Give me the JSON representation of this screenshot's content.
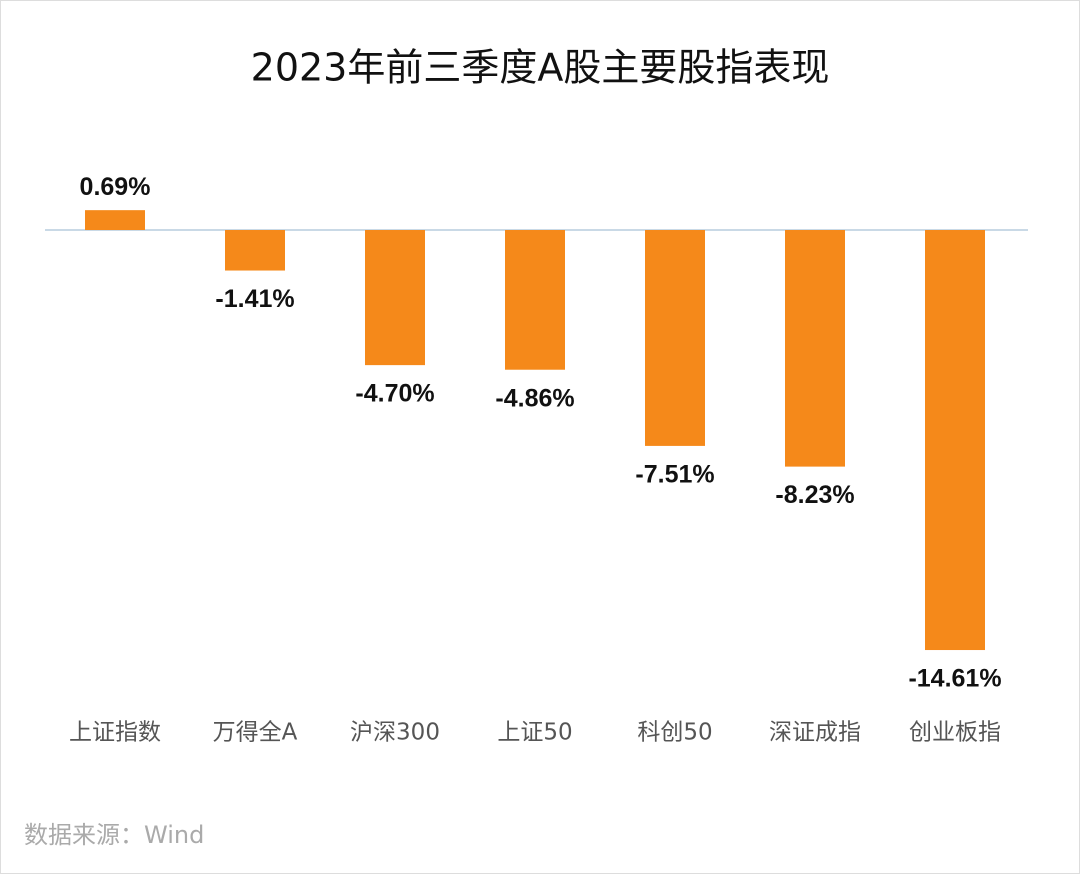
{
  "chart_data": {
    "type": "bar",
    "title": "2023年前三季度A股主要股指表现",
    "categories": [
      "上证指数",
      "万得全A",
      "沪深300",
      "上证50",
      "科创50",
      "深证成指",
      "创业板指"
    ],
    "values": [
      0.69,
      -1.41,
      -4.7,
      -4.86,
      -7.51,
      -8.23,
      -14.61
    ],
    "value_labels": [
      "0.69%",
      "-1.41%",
      "-4.70%",
      "-4.86%",
      "-7.51%",
      "-8.23%",
      "-14.61%"
    ],
    "color": "#f5891a",
    "source": "数据来源：Wind"
  }
}
